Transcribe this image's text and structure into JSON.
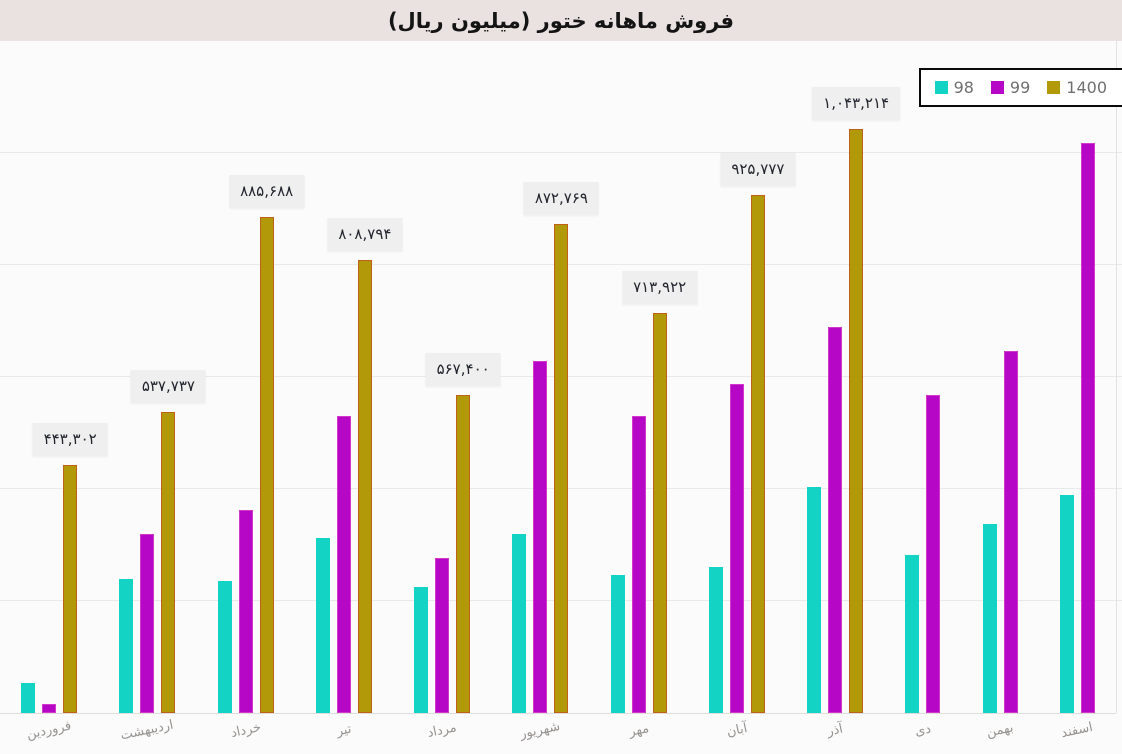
{
  "title": "فروش ماهانه ختور (میلیون ریال)",
  "legend": {
    "position": "top-right",
    "items": [
      {
        "label": "98",
        "color": "#13d4c4"
      },
      {
        "label": "99",
        "color": "#b607c6"
      },
      {
        "label": "1400",
        "color": "#b1990a"
      }
    ]
  },
  "chart_data": {
    "type": "bar",
    "title": "فروش ماهانه ختور (میلیون ریال)",
    "categories": [
      "فروردین",
      "اردیبهشت",
      "خرداد",
      "تیر",
      "مرداد",
      "شهریور",
      "مهر",
      "آبان",
      "آذر",
      "دی",
      "بهمن",
      "اسفند"
    ],
    "series": [
      {
        "name": "98",
        "color": "#13d4c4",
        "values": [
          54000,
          240000,
          236000,
          313000,
          225000,
          320000,
          247000,
          260000,
          403000,
          283000,
          338000,
          390000
        ]
      },
      {
        "name": "99",
        "color": "#b607c6",
        "values": [
          16000,
          320000,
          362000,
          531000,
          276000,
          628000,
          530000,
          587000,
          689000,
          567000,
          646000,
          1018000
        ]
      },
      {
        "name": "1400",
        "color": "#b1990a",
        "values": [
          443302,
          537737,
          885688,
          808794,
          567400,
          872769,
          713922,
          925777,
          1043214,
          null,
          null,
          null
        ],
        "data_labels": [
          "۴۴۳,۳۰۲",
          "۵۳۷,۷۳۷",
          "۸۸۵,۶۸۸",
          "۸۰۸,۷۹۴",
          "۵۶۷,۴۰۰",
          "۸۷۲,۷۶۹",
          "۷۱۳,۹۲۲",
          "۹۲۵,۷۷۷",
          "۱,۰۴۳,۲۱۴",
          null,
          null,
          null
        ]
      }
    ],
    "ylim": [
      0,
      1200000
    ],
    "gridline_step": 200000,
    "grid": "horizontal",
    "y_axis_side": "right",
    "y_axis_labels_visible": false,
    "legend_position": "top-right"
  }
}
